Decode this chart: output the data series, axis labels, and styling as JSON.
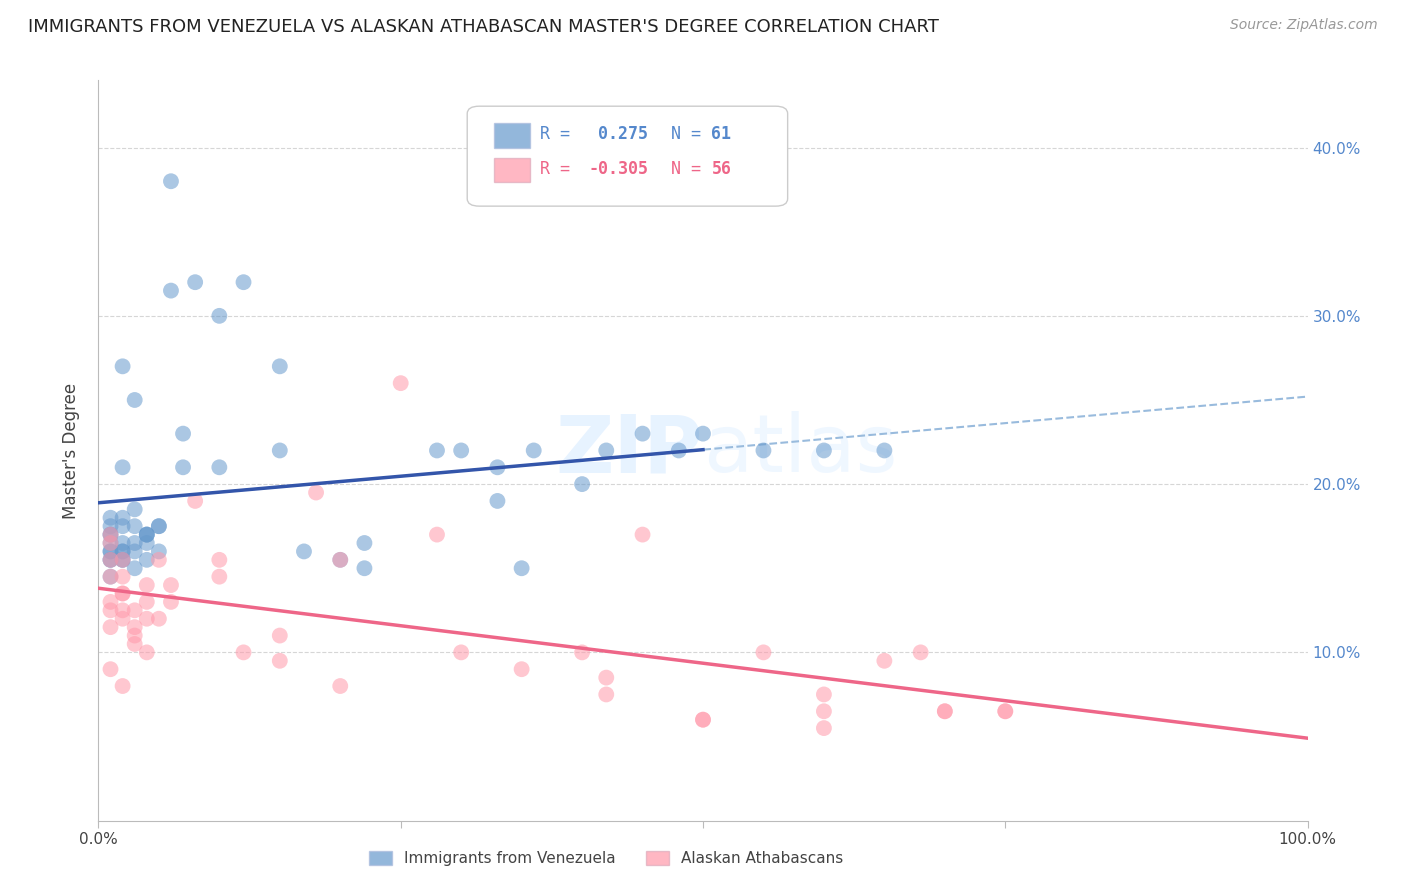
{
  "title": "IMMIGRANTS FROM VENEZUELA VS ALASKAN ATHABASCAN MASTER'S DEGREE CORRELATION CHART",
  "source": "Source: ZipAtlas.com",
  "ylabel": "Master's Degree",
  "xlim": [
    0.0,
    1.0
  ],
  "ylim": [
    0.0,
    0.44
  ],
  "blue_R": 0.275,
  "blue_N": 61,
  "pink_R": -0.305,
  "pink_N": 56,
  "blue_color": "#6699CC",
  "pink_color": "#FF99AA",
  "blue_line_color": "#3355AA",
  "pink_line_color": "#EE6688",
  "dashed_line_color": "#99BBDD",
  "watermark_color": "#CCDDEE",
  "background_color": "#FFFFFF",
  "grid_color": "#CCCCCC",
  "blue_scatter_x": [
    0.01,
    0.01,
    0.01,
    0.01,
    0.01,
    0.01,
    0.01,
    0.01,
    0.01,
    0.01,
    0.02,
    0.02,
    0.02,
    0.02,
    0.02,
    0.02,
    0.02,
    0.02,
    0.02,
    0.03,
    0.03,
    0.03,
    0.03,
    0.03,
    0.03,
    0.04,
    0.04,
    0.04,
    0.04,
    0.04,
    0.05,
    0.05,
    0.05,
    0.06,
    0.06,
    0.07,
    0.07,
    0.08,
    0.1,
    0.1,
    0.12,
    0.15,
    0.15,
    0.17,
    0.2,
    0.22,
    0.22,
    0.28,
    0.3,
    0.33,
    0.33,
    0.35,
    0.36,
    0.4,
    0.42,
    0.45,
    0.48,
    0.5,
    0.55,
    0.6,
    0.65
  ],
  "blue_scatter_y": [
    0.17,
    0.155,
    0.16,
    0.165,
    0.155,
    0.16,
    0.145,
    0.17,
    0.175,
    0.18,
    0.155,
    0.16,
    0.27,
    0.18,
    0.175,
    0.16,
    0.165,
    0.155,
    0.21,
    0.165,
    0.15,
    0.16,
    0.175,
    0.185,
    0.25,
    0.17,
    0.165,
    0.155,
    0.17,
    0.17,
    0.175,
    0.175,
    0.16,
    0.315,
    0.38,
    0.21,
    0.23,
    0.32,
    0.21,
    0.3,
    0.32,
    0.22,
    0.27,
    0.16,
    0.155,
    0.165,
    0.15,
    0.22,
    0.22,
    0.21,
    0.19,
    0.15,
    0.22,
    0.2,
    0.22,
    0.23,
    0.22,
    0.23,
    0.22,
    0.22,
    0.22
  ],
  "pink_scatter_x": [
    0.01,
    0.01,
    0.01,
    0.01,
    0.01,
    0.01,
    0.01,
    0.01,
    0.02,
    0.02,
    0.02,
    0.02,
    0.02,
    0.02,
    0.02,
    0.03,
    0.03,
    0.03,
    0.03,
    0.04,
    0.04,
    0.04,
    0.04,
    0.05,
    0.05,
    0.06,
    0.06,
    0.08,
    0.1,
    0.1,
    0.12,
    0.15,
    0.15,
    0.18,
    0.2,
    0.2,
    0.25,
    0.28,
    0.3,
    0.35,
    0.4,
    0.42,
    0.42,
    0.45,
    0.5,
    0.5,
    0.55,
    0.6,
    0.6,
    0.6,
    0.65,
    0.68,
    0.7,
    0.7,
    0.75,
    0.75
  ],
  "pink_scatter_y": [
    0.155,
    0.17,
    0.145,
    0.13,
    0.125,
    0.115,
    0.09,
    0.165,
    0.155,
    0.125,
    0.12,
    0.08,
    0.145,
    0.135,
    0.135,
    0.125,
    0.11,
    0.115,
    0.105,
    0.14,
    0.13,
    0.12,
    0.1,
    0.155,
    0.12,
    0.14,
    0.13,
    0.19,
    0.155,
    0.145,
    0.1,
    0.11,
    0.095,
    0.195,
    0.155,
    0.08,
    0.26,
    0.17,
    0.1,
    0.09,
    0.1,
    0.085,
    0.075,
    0.17,
    0.06,
    0.06,
    0.1,
    0.075,
    0.065,
    0.055,
    0.095,
    0.1,
    0.065,
    0.065,
    0.065,
    0.065
  ],
  "legend_blue_label": "Immigrants from Venezuela",
  "legend_pink_label": "Alaskan Athabascans"
}
